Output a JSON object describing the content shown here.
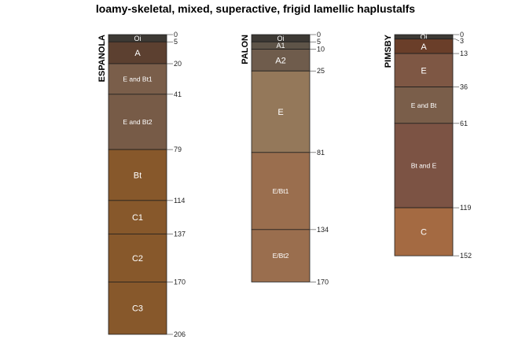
{
  "chart_data": {
    "type": "soil-profile",
    "title": "loamy-skeletal, mixed, superactive, frigid lamellic haplustalfs",
    "depth_units": "cm",
    "ylim": [
      0,
      206
    ],
    "profiles": [
      {
        "name": "ESPANOLA",
        "horizons": [
          {
            "name": "Oi",
            "top": 0,
            "bottom": 5,
            "color": "#3d3934"
          },
          {
            "name": "A",
            "top": 5,
            "bottom": 20,
            "color": "#5c4030"
          },
          {
            "name": "E and Bt1",
            "top": 20,
            "bottom": 41,
            "color": "#7a5e4a"
          },
          {
            "name": "E and Bt2",
            "top": 41,
            "bottom": 79,
            "color": "#775b47"
          },
          {
            "name": "Bt",
            "top": 79,
            "bottom": 114,
            "color": "#87582b"
          },
          {
            "name": "C1",
            "top": 114,
            "bottom": 137,
            "color": "#87582b"
          },
          {
            "name": "C2",
            "top": 137,
            "bottom": 170,
            "color": "#87582b"
          },
          {
            "name": "C3",
            "top": 170,
            "bottom": 206,
            "color": "#87582b"
          }
        ],
        "depth_labels": [
          "0",
          "5",
          "20",
          "41",
          "79",
          "114",
          "137",
          "170",
          "206"
        ]
      },
      {
        "name": "PALON",
        "horizons": [
          {
            "name": "Oi",
            "top": 0,
            "bottom": 5,
            "color": "#3d3934"
          },
          {
            "name": "A1",
            "top": 5,
            "bottom": 10,
            "color": "#5e5448"
          },
          {
            "name": "A2",
            "top": 10,
            "bottom": 25,
            "color": "#6f5c4c"
          },
          {
            "name": "E",
            "top": 25,
            "bottom": 81,
            "color": "#94785a"
          },
          {
            "name": "E/Bt1",
            "top": 81,
            "bottom": 134,
            "color": "#9a6e4e"
          },
          {
            "name": "E/Bt2",
            "top": 134,
            "bottom": 170,
            "color": "#9a6e4e"
          }
        ],
        "depth_labels": [
          "0",
          "5",
          "10",
          "25",
          "81",
          "134",
          "170"
        ]
      },
      {
        "name": "PIMSBY",
        "horizons": [
          {
            "name": "Oi",
            "top": 0,
            "bottom": 3,
            "color": "#3d3934"
          },
          {
            "name": "A",
            "top": 3,
            "bottom": 13,
            "color": "#6a3e29"
          },
          {
            "name": "E",
            "top": 13,
            "bottom": 36,
            "color": "#7e5744"
          },
          {
            "name": "E and Bt",
            "top": 36,
            "bottom": 61,
            "color": "#7a5e4a"
          },
          {
            "name": "Bt and E",
            "top": 61,
            "bottom": 119,
            "color": "#7c5344"
          },
          {
            "name": "C",
            "top": 119,
            "bottom": 152,
            "color": "#a46a42"
          }
        ],
        "depth_labels": [
          "0",
          "3",
          "13",
          "36",
          "61",
          "119",
          "152"
        ]
      }
    ]
  }
}
